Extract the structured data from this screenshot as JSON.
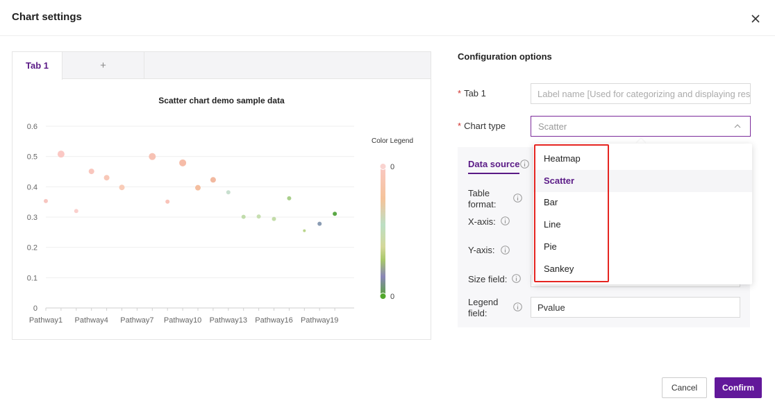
{
  "dialog": {
    "title": "Chart settings",
    "close_icon": "close-icon"
  },
  "preview": {
    "tabs": [
      {
        "label": "Tab 1"
      },
      {
        "label": "+"
      }
    ]
  },
  "config": {
    "heading": "Configuration options",
    "tab_field": {
      "label": "Tab 1",
      "placeholder": "Label name [Used for categorizing and displaying results]"
    },
    "chart_type": {
      "label": "Chart type",
      "value": "Scatter"
    },
    "chart_type_options": [
      "Heatmap",
      "Scatter",
      "Bar",
      "Line",
      "Pie",
      "Sankey"
    ],
    "selected_option_index": 1,
    "data_source": {
      "tab_label": "Data source",
      "table_format_label": "Table format:",
      "x_axis_label": "X-axis:",
      "y_axis_label": "Y-axis:",
      "size_field_label": "Size field:",
      "legend_field_label": "Legend field:",
      "legend_field_value": "Pvalue"
    }
  },
  "buttons": {
    "cancel": "Cancel",
    "confirm": "Confirm"
  },
  "colors": {
    "accent": "#62189a",
    "tab_text": "#5a1a86",
    "required": "#d0312d",
    "highlight_box": "#e52420"
  },
  "chart_data": {
    "type": "scatter",
    "title": "Scatter chart demo sample data",
    "x_tick_labels": [
      "Pathway1",
      "Pathway4",
      "Pathway7",
      "Pathway10",
      "Pathway13",
      "Pathway16",
      "Pathway19"
    ],
    "y_ticks": [
      "0",
      "0.1",
      "0.2",
      "0.3",
      "0.4",
      "0.5",
      "0.6"
    ],
    "ylim": [
      0,
      0.6
    ],
    "grid": true,
    "legend": {
      "title": "Color Legend",
      "top_label": "0",
      "bottom_label": "0",
      "placement": "right"
    },
    "points": [
      {
        "x": "Pathway1",
        "y": 0.353,
        "size": 3,
        "color": "#f7c6c0"
      },
      {
        "x": "Pathway2",
        "y": 0.508,
        "size": 5,
        "color": "#fbc8c4"
      },
      {
        "x": "Pathway3",
        "y": 0.32,
        "size": 3,
        "color": "#fad0cd"
      },
      {
        "x": "Pathway4",
        "y": 0.451,
        "size": 4,
        "color": "#f9c6bd"
      },
      {
        "x": "Pathway5",
        "y": 0.43,
        "size": 4,
        "color": "#f8c8b8"
      },
      {
        "x": "Pathway6",
        "y": 0.398,
        "size": 4,
        "color": "#f9ccb8"
      },
      {
        "x": "Pathway7",
        "y": 0.0,
        "size": 0,
        "color": "#ffffff"
      },
      {
        "x": "Pathway8",
        "y": 0.5,
        "size": 5,
        "color": "#f7c2b4"
      },
      {
        "x": "Pathway9",
        "y": 0.351,
        "size": 3,
        "color": "#f9c3b9"
      },
      {
        "x": "Pathway10",
        "y": 0.479,
        "size": 5,
        "color": "#f6bca8"
      },
      {
        "x": "Pathway11",
        "y": 0.397,
        "size": 4,
        "color": "#f4be9f"
      },
      {
        "x": "Pathway12",
        "y": 0.423,
        "size": 4,
        "color": "#f2b9a0"
      },
      {
        "x": "Pathway13",
        "y": 0.382,
        "size": 3,
        "color": "#c8dfcf"
      },
      {
        "x": "Pathway14",
        "y": 0.301,
        "size": 3,
        "color": "#c1dcab"
      },
      {
        "x": "Pathway15",
        "y": 0.302,
        "size": 3,
        "color": "#c7dfb1"
      },
      {
        "x": "Pathway16",
        "y": 0.294,
        "size": 3,
        "color": "#c3dca9"
      },
      {
        "x": "Pathway17",
        "y": 0.362,
        "size": 3,
        "color": "#a9cf8b"
      },
      {
        "x": "Pathway18",
        "y": 0.255,
        "size": 2,
        "color": "#b9d58b"
      },
      {
        "x": "Pathway19",
        "y": 0.278,
        "size": 3,
        "color": "#8a9cb3"
      },
      {
        "x": "Pathway20",
        "y": 0.311,
        "size": 3,
        "color": "#5aa845"
      }
    ]
  }
}
